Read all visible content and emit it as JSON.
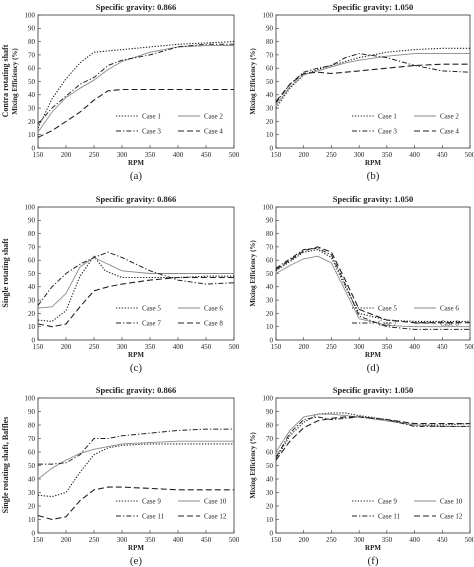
{
  "row_labels": [
    "Contra rotating shaft",
    "Single rotating shaft",
    "Single rotating shaft, Baffles"
  ],
  "chart_data": [
    {
      "type": "line",
      "title": "Specific gravity: 0.866",
      "caption": "(a)",
      "xlabel": "RPM",
      "ylabel": "Mixing Efficiency (%)",
      "xlim": [
        150,
        500
      ],
      "ylim": [
        0,
        100
      ],
      "xticks": [
        150,
        200,
        250,
        300,
        350,
        400,
        450,
        500
      ],
      "yticks": [
        0,
        10,
        20,
        30,
        40,
        50,
        60,
        70,
        80,
        90,
        100
      ],
      "legend_position": "bottom-right",
      "series": [
        {
          "name": "Case 1",
          "x": [
            150,
            175,
            200,
            225,
            250,
            275,
            300,
            350,
            400,
            450,
            500
          ],
          "y": [
            15,
            37,
            52,
            64,
            72,
            73,
            74,
            76,
            78,
            79,
            80
          ]
        },
        {
          "name": "Case 2",
          "x": [
            150,
            175,
            200,
            225,
            250,
            275,
            300,
            350,
            400,
            450,
            500
          ],
          "y": [
            12,
            27,
            38,
            45,
            51,
            59,
            65,
            72,
            76,
            77,
            77
          ]
        },
        {
          "name": "Case 3",
          "x": [
            150,
            175,
            200,
            225,
            250,
            275,
            300,
            350,
            400,
            450,
            500
          ],
          "y": [
            18,
            30,
            39,
            48,
            53,
            62,
            66,
            70,
            76,
            78,
            78
          ]
        },
        {
          "name": "Case 4",
          "x": [
            150,
            175,
            200,
            225,
            250,
            275,
            300,
            350,
            400,
            450,
            500
          ],
          "y": [
            8,
            13,
            20,
            27,
            36,
            43,
            44,
            44,
            44,
            44,
            44
          ]
        }
      ]
    },
    {
      "type": "line",
      "title": "Specific gravity: 1.050",
      "caption": "(b)",
      "xlabel": "RPM",
      "ylabel": "Mixing Efficiency (%)",
      "xlim": [
        150,
        500
      ],
      "ylim": [
        0,
        100
      ],
      "xticks": [
        150,
        200,
        250,
        300,
        350,
        400,
        450,
        500
      ],
      "yticks": [
        0,
        10,
        20,
        30,
        40,
        50,
        60,
        70,
        80,
        90,
        100
      ],
      "legend_position": "bottom-right",
      "series": [
        {
          "name": "Case 1",
          "x": [
            150,
            175,
            200,
            225,
            250,
            275,
            300,
            350,
            400,
            450,
            500
          ],
          "y": [
            30,
            45,
            55,
            59,
            62,
            65,
            68,
            72,
            74,
            75,
            75
          ]
        },
        {
          "name": "Case 2",
          "x": [
            150,
            175,
            200,
            225,
            250,
            275,
            300,
            350,
            400,
            450,
            500
          ],
          "y": [
            32,
            46,
            55,
            58,
            61,
            64,
            66,
            69,
            71,
            71,
            71
          ]
        },
        {
          "name": "Case 3",
          "x": [
            150,
            175,
            200,
            225,
            250,
            275,
            300,
            350,
            400,
            450,
            500
          ],
          "y": [
            34,
            48,
            57,
            60,
            62,
            68,
            71,
            68,
            62,
            58,
            57
          ]
        },
        {
          "name": "Case 4",
          "x": [
            150,
            175,
            200,
            225,
            250,
            275,
            300,
            350,
            400,
            450,
            500
          ],
          "y": [
            35,
            48,
            56,
            57,
            56,
            57,
            58,
            60,
            62,
            63,
            63
          ]
        }
      ]
    },
    {
      "type": "line",
      "title": "Specific gravity: 0.866",
      "caption": "(c)",
      "xlabel": "RPM",
      "ylabel": "",
      "xlim": [
        150,
        500
      ],
      "ylim": [
        0,
        100
      ],
      "xticks": [
        150,
        200,
        250,
        300,
        350,
        400,
        450,
        500
      ],
      "yticks": [
        0,
        10,
        20,
        30,
        40,
        50,
        60,
        70,
        80,
        90,
        100
      ],
      "legend_position": "bottom-right",
      "series": [
        {
          "name": "Case 5",
          "x": [
            150,
            175,
            200,
            225,
            250,
            270,
            300,
            350,
            400,
            450,
            500
          ],
          "y": [
            15,
            14,
            22,
            48,
            63,
            52,
            47,
            47,
            47,
            48,
            48
          ]
        },
        {
          "name": "Case 6",
          "x": [
            150,
            175,
            200,
            225,
            250,
            270,
            300,
            350,
            400,
            450,
            500
          ],
          "y": [
            24,
            25,
            35,
            55,
            62,
            58,
            52,
            50,
            50,
            50,
            50
          ]
        },
        {
          "name": "Case 7",
          "x": [
            150,
            175,
            200,
            225,
            250,
            275,
            300,
            350,
            400,
            450,
            500
          ],
          "y": [
            26,
            40,
            50,
            57,
            62,
            66,
            62,
            52,
            45,
            42,
            43
          ]
        },
        {
          "name": "Case 8",
          "x": [
            150,
            175,
            200,
            225,
            250,
            275,
            300,
            350,
            400,
            450,
            500
          ],
          "y": [
            12,
            10,
            12,
            25,
            37,
            40,
            42,
            45,
            47,
            47,
            47
          ]
        }
      ]
    },
    {
      "type": "line",
      "title": "Specific gravity: 1.050",
      "caption": "(d)",
      "xlabel": "RPM",
      "ylabel": "Mixing Efficiency (%)",
      "xlim": [
        150,
        500
      ],
      "ylim": [
        0,
        100
      ],
      "xticks": [
        150,
        200,
        250,
        300,
        350,
        400,
        450,
        500
      ],
      "yticks": [
        0,
        10,
        20,
        30,
        40,
        50,
        60,
        70,
        80,
        90,
        100
      ],
      "legend_position": "bottom-right",
      "series": [
        {
          "name": "Case 5",
          "x": [
            150,
            175,
            200,
            225,
            250,
            275,
            300,
            350,
            400,
            450,
            500
          ],
          "y": [
            52,
            59,
            66,
            68,
            62,
            40,
            20,
            15,
            14,
            14,
            14
          ]
        },
        {
          "name": "Case 6",
          "x": [
            150,
            175,
            200,
            225,
            250,
            275,
            300,
            350,
            400,
            450,
            500
          ],
          "y": [
            50,
            56,
            61,
            63,
            58,
            37,
            16,
            11,
            10,
            10,
            10
          ]
        },
        {
          "name": "Case 7",
          "x": [
            150,
            175,
            200,
            225,
            250,
            275,
            300,
            350,
            400,
            450,
            500
          ],
          "y": [
            54,
            61,
            68,
            69,
            64,
            42,
            18,
            10,
            8,
            8,
            8
          ]
        },
        {
          "name": "Case 8",
          "x": [
            150,
            175,
            200,
            225,
            250,
            275,
            300,
            350,
            400,
            450,
            500
          ],
          "y": [
            53,
            60,
            67,
            70,
            66,
            45,
            23,
            15,
            13,
            13,
            13
          ]
        }
      ]
    },
    {
      "type": "line",
      "title": "Specific gravity: 0.866",
      "caption": "(e)",
      "xlabel": "RPM",
      "ylabel": "",
      "xlim": [
        150,
        500
      ],
      "ylim": [
        0,
        100
      ],
      "xticks": [
        150,
        200,
        250,
        300,
        350,
        400,
        450,
        500
      ],
      "yticks": [
        0,
        10,
        20,
        30,
        40,
        50,
        60,
        70,
        80,
        90,
        100
      ],
      "legend_position": "bottom-right",
      "series": [
        {
          "name": "Case 9",
          "x": [
            150,
            175,
            200,
            225,
            250,
            275,
            300,
            350,
            400,
            450,
            500
          ],
          "y": [
            28,
            27,
            30,
            45,
            58,
            63,
            65,
            66,
            66,
            66,
            66
          ]
        },
        {
          "name": "Case 10",
          "x": [
            150,
            175,
            200,
            225,
            250,
            275,
            300,
            350,
            400,
            450,
            500
          ],
          "y": [
            40,
            48,
            54,
            59,
            62,
            64,
            66,
            67,
            68,
            68,
            68
          ]
        },
        {
          "name": "Case 11",
          "x": [
            150,
            175,
            200,
            225,
            250,
            275,
            300,
            350,
            400,
            450,
            500
          ],
          "y": [
            51,
            51,
            52,
            58,
            70,
            70,
            72,
            74,
            76,
            77,
            77
          ]
        },
        {
          "name": "Case 12",
          "x": [
            150,
            175,
            200,
            225,
            250,
            275,
            300,
            350,
            400,
            450,
            500
          ],
          "y": [
            13,
            10,
            12,
            24,
            32,
            34,
            34,
            33,
            32,
            32,
            32
          ]
        }
      ]
    },
    {
      "type": "line",
      "title": "Specific gravity: 1.050",
      "caption": "(f)",
      "xlabel": "RPM",
      "ylabel": "Mixing Efficiency (%)",
      "xlim": [
        150,
        500
      ],
      "ylim": [
        0,
        100
      ],
      "xticks": [
        150,
        200,
        250,
        300,
        350,
        400,
        450,
        500
      ],
      "yticks": [
        0,
        10,
        20,
        30,
        40,
        50,
        60,
        70,
        80,
        90,
        100
      ],
      "legend_position": "bottom-right",
      "series": [
        {
          "name": "Case 9",
          "x": [
            150,
            175,
            200,
            225,
            250,
            275,
            300,
            350,
            400,
            450,
            500
          ],
          "y": [
            55,
            72,
            82,
            88,
            89,
            89,
            87,
            84,
            80,
            80,
            81
          ]
        },
        {
          "name": "Case 10",
          "x": [
            150,
            175,
            200,
            225,
            250,
            275,
            300,
            350,
            400,
            450,
            500
          ],
          "y": [
            60,
            76,
            86,
            88,
            88,
            87,
            86,
            83,
            80,
            79,
            79
          ]
        },
        {
          "name": "Case 11",
          "x": [
            150,
            175,
            200,
            225,
            250,
            275,
            300,
            350,
            400,
            450,
            500
          ],
          "y": [
            56,
            74,
            84,
            86,
            84,
            85,
            86,
            84,
            79,
            79,
            79
          ]
        },
        {
          "name": "Case 12",
          "x": [
            150,
            175,
            200,
            225,
            250,
            275,
            300,
            350,
            400,
            450,
            500
          ],
          "y": [
            54,
            68,
            78,
            83,
            85,
            86,
            86,
            84,
            81,
            81,
            81
          ]
        }
      ]
    }
  ]
}
